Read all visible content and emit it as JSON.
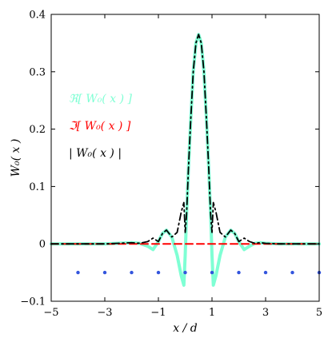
{
  "chart_data": {
    "type": "line",
    "xlabel": "x / d",
    "ylabel": "W₀( x )",
    "xlim": [
      -5,
      5
    ],
    "ylim": [
      -0.1,
      0.4
    ],
    "x_ticks": [
      -5,
      -3,
      -1,
      1,
      3,
      5
    ],
    "y_ticks": [
      -0.1,
      0,
      0.1,
      0.2,
      0.3,
      0.4
    ],
    "x_tick_labels": [
      "−5",
      "−3",
      "−1",
      "1",
      "3",
      "5"
    ],
    "y_tick_labels": [
      "−0.1",
      "0",
      "0.1",
      "0.2",
      "0.3",
      "0.4"
    ],
    "grid": false,
    "legend_position": "left",
    "series": [
      {
        "name": "ℜ[ W₀( x ) ]",
        "color": "#7fffd4",
        "style": "solid",
        "x": [
          -5,
          -4,
          -3,
          -2.5,
          -2,
          -1.7,
          -1.4,
          -1.2,
          -1.0,
          -0.85,
          -0.7,
          -0.5,
          -0.3,
          -0.15,
          -0.05,
          0,
          0.05,
          0.12,
          0.2,
          0.3,
          0.4,
          0.5,
          0.6,
          0.7,
          0.8,
          0.88,
          0.95,
          1.0,
          1.05,
          1.15,
          1.3,
          1.5,
          1.7,
          1.85,
          2.0,
          2.2,
          2.4,
          2.6,
          2.8,
          3.0,
          3.5,
          4,
          5
        ],
        "values": [
          0,
          0,
          0,
          0.001,
          0.002,
          0.001,
          -0.004,
          -0.01,
          0.004,
          0.018,
          0.024,
          0.012,
          -0.02,
          -0.055,
          -0.072,
          -0.02,
          0.05,
          0.13,
          0.21,
          0.3,
          0.35,
          0.365,
          0.35,
          0.3,
          0.21,
          0.13,
          0.05,
          -0.02,
          -0.072,
          -0.055,
          -0.02,
          0.012,
          0.024,
          0.018,
          0.004,
          -0.01,
          -0.004,
          0.001,
          0.002,
          0.001,
          0,
          0,
          0
        ]
      },
      {
        "name": "ℑ[ W₀( x ) ]",
        "color": "#ff0000",
        "style": "dashed",
        "x": [
          -5,
          5
        ],
        "values": [
          0,
          0
        ]
      },
      {
        "name": "| W₀( x ) |",
        "color": "#000000",
        "style": "dash-dot",
        "x": [
          -5,
          -4,
          -3,
          -2.5,
          -2,
          -1.7,
          -1.4,
          -1.2,
          -1.0,
          -0.85,
          -0.7,
          -0.5,
          -0.3,
          -0.15,
          -0.05,
          0,
          0.05,
          0.12,
          0.2,
          0.3,
          0.4,
          0.5,
          0.6,
          0.7,
          0.8,
          0.88,
          0.95,
          1.0,
          1.05,
          1.15,
          1.3,
          1.5,
          1.7,
          1.85,
          2.0,
          2.2,
          2.4,
          2.6,
          2.8,
          3.0,
          3.5,
          4,
          5
        ],
        "values": [
          0,
          0,
          0,
          0.001,
          0.002,
          0.001,
          0.004,
          0.01,
          0.004,
          0.018,
          0.024,
          0.012,
          0.02,
          0.055,
          0.072,
          0.02,
          0.05,
          0.13,
          0.21,
          0.3,
          0.35,
          0.365,
          0.35,
          0.3,
          0.21,
          0.13,
          0.05,
          0.02,
          0.072,
          0.055,
          0.02,
          0.012,
          0.024,
          0.018,
          0.004,
          0.01,
          0.004,
          0.001,
          0.002,
          0.001,
          0,
          0,
          0
        ]
      }
    ],
    "markers": {
      "color": "#3355dd",
      "style": "dot",
      "x": [
        -4,
        -3,
        -2,
        -1,
        0,
        1,
        2,
        3,
        4,
        5
      ],
      "values": [
        -0.05,
        -0.05,
        -0.05,
        -0.05,
        -0.05,
        -0.05,
        -0.05,
        -0.05,
        -0.05,
        -0.05
      ]
    },
    "legend": [
      {
        "text": "ℜ[ W₀( x ) ]",
        "color": "#7fffd4"
      },
      {
        "text": "ℑ[ W₀( x ) ]",
        "color": "#ff0000"
      },
      {
        "text": "| W₀( x ) |",
        "color": "#000000"
      }
    ]
  }
}
